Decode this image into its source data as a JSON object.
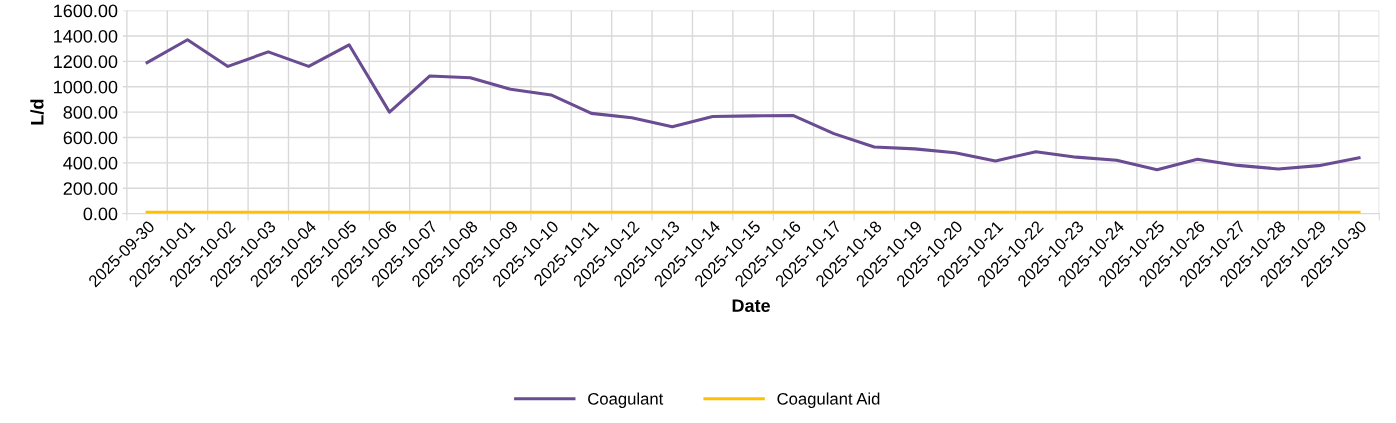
{
  "chart_data": {
    "type": "line",
    "xlabel": "Date",
    "ylabel": "L/d",
    "categories": [
      "2025-09-30",
      "2025-10-01",
      "2025-10-02",
      "2025-10-03",
      "2025-10-04",
      "2025-10-05",
      "2025-10-06",
      "2025-10-07",
      "2025-10-08",
      "2025-10-09",
      "2025-10-10",
      "2025-10-11",
      "2025-10-12",
      "2025-10-13",
      "2025-10-14",
      "2025-10-15",
      "2025-10-16",
      "2025-10-17",
      "2025-10-18",
      "2025-10-19",
      "2025-10-20",
      "2025-10-21",
      "2025-10-22",
      "2025-10-23",
      "2025-10-24",
      "2025-10-25",
      "2025-10-26",
      "2025-10-27",
      "2025-10-28",
      "2025-10-29",
      "2025-10-30"
    ],
    "series": [
      {
        "name": "Coagulant",
        "color": "#6a4c93",
        "values": [
          1190,
          1370,
          1160,
          1275,
          1160,
          1330,
          800,
          1085,
          1070,
          980,
          935,
          790,
          755,
          685,
          765,
          770,
          772,
          630,
          525,
          510,
          480,
          415,
          488,
          445,
          420,
          345,
          428,
          380,
          352,
          378,
          440
        ]
      },
      {
        "name": "Coagulant Aid",
        "color": "#ffc000",
        "values": [
          10,
          10,
          10,
          10,
          10,
          10,
          10,
          10,
          10,
          10,
          10,
          10,
          10,
          10,
          10,
          10,
          10,
          10,
          10,
          10,
          10,
          10,
          10,
          10,
          10,
          10,
          10,
          10,
          10,
          10,
          10
        ]
      }
    ],
    "ylim": [
      0,
      1600
    ],
    "yticks": [
      {
        "value": 0,
        "label": "0.00"
      },
      {
        "value": 200,
        "label": "200.00"
      },
      {
        "value": 400,
        "label": "400.00"
      },
      {
        "value": 600,
        "label": "600.00"
      },
      {
        "value": 800,
        "label": "800.00"
      },
      {
        "value": 1000,
        "label": "1000.00"
      },
      {
        "value": 1200,
        "label": "1200.00"
      },
      {
        "value": 1400,
        "label": "1400.00"
      },
      {
        "value": 1600,
        "label": "1600.00"
      }
    ],
    "grid": true,
    "legend": "bottom",
    "marker": "none",
    "line_style": "solid"
  }
}
